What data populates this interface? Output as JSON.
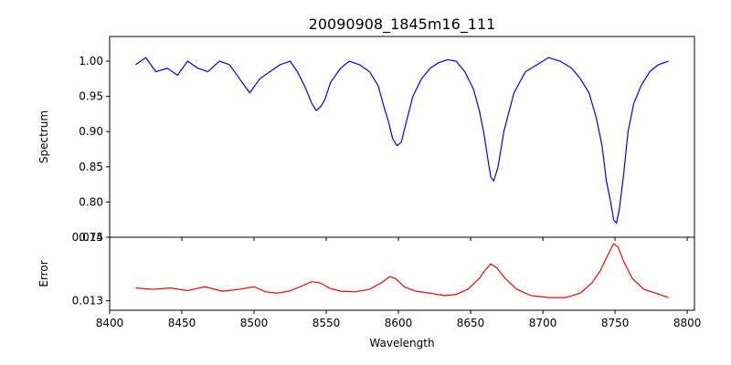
{
  "chart_data": [
    {
      "type": "line",
      "title": "20090908_1845m16_111",
      "xlabel": "",
      "ylabel": "Spectrum",
      "xlim": [
        8400,
        8805
      ],
      "ylim": [
        0.75,
        1.035
      ],
      "xticks": [
        8400,
        8450,
        8500,
        8550,
        8600,
        8650,
        8700,
        8750,
        8800
      ],
      "yticks": [
        0.75,
        0.8,
        0.85,
        0.9,
        0.95,
        1.0
      ],
      "ytick_labels": [
        "0.75",
        "0.80",
        "0.85",
        "0.90",
        "0.95",
        "1.00"
      ],
      "grid": false,
      "series": [
        {
          "color": "#0000ff",
          "x": [
            8418,
            8425,
            8432,
            8440,
            8447,
            8454,
            8461,
            8468,
            8476,
            8483,
            8490,
            8497,
            8504,
            8511,
            8518,
            8525,
            8530,
            8535,
            8540,
            8543,
            8546,
            8549,
            8553,
            8560,
            8566,
            8573,
            8580,
            8586,
            8590,
            8593,
            8596,
            8599,
            8602,
            8605,
            8610,
            8616,
            8622,
            8628,
            8634,
            8640,
            8646,
            8652,
            8656,
            8659,
            8662,
            8664,
            8666,
            8669,
            8673,
            8680,
            8688,
            8696,
            8704,
            8712,
            8720,
            8726,
            8732,
            8737,
            8741,
            8744,
            8747,
            8749,
            8751,
            8753,
            8756,
            8759,
            8763,
            8768,
            8774,
            8780,
            8787
          ],
          "y": [
            0.995,
            1.005,
            0.985,
            0.99,
            0.98,
            1.0,
            0.99,
            0.985,
            1.0,
            0.995,
            0.975,
            0.955,
            0.975,
            0.985,
            0.995,
            1.0,
            0.985,
            0.965,
            0.94,
            0.93,
            0.935,
            0.945,
            0.97,
            0.99,
            1.0,
            0.995,
            0.985,
            0.965,
            0.935,
            0.915,
            0.89,
            0.88,
            0.885,
            0.91,
            0.95,
            0.975,
            0.99,
            0.998,
            1.002,
            1.0,
            0.985,
            0.96,
            0.93,
            0.9,
            0.86,
            0.835,
            0.83,
            0.85,
            0.9,
            0.955,
            0.985,
            0.995,
            1.005,
            1.0,
            0.99,
            0.975,
            0.955,
            0.92,
            0.88,
            0.83,
            0.8,
            0.775,
            0.77,
            0.79,
            0.84,
            0.9,
            0.94,
            0.965,
            0.985,
            0.995,
            1.0
          ]
        }
      ]
    },
    {
      "type": "line",
      "title": "",
      "xlabel": "Wavelength",
      "ylabel": "Error",
      "xlim": [
        8400,
        8805
      ],
      "ylim": [
        0.01285,
        0.014
      ],
      "xticks": [
        8400,
        8450,
        8500,
        8550,
        8600,
        8650,
        8700,
        8750,
        8800
      ],
      "xtick_labels": [
        "8400",
        "8450",
        "8500",
        "8550",
        "8600",
        "8650",
        "8700",
        "8750",
        "8800"
      ],
      "yticks": [
        0.013,
        0.014
      ],
      "ytick_labels": [
        "0.013",
        "0.014"
      ],
      "grid": false,
      "series": [
        {
          "color": "#ff0000",
          "x": [
            8418,
            8430,
            8442,
            8454,
            8466,
            8478,
            8490,
            8500,
            8508,
            8516,
            8524,
            8532,
            8540,
            8546,
            8552,
            8560,
            8570,
            8580,
            8588,
            8594,
            8598,
            8604,
            8612,
            8622,
            8632,
            8640,
            8648,
            8656,
            8660,
            8664,
            8668,
            8674,
            8682,
            8692,
            8704,
            8716,
            8726,
            8734,
            8740,
            8745,
            8749,
            8752,
            8756,
            8762,
            8770,
            8778,
            8787
          ],
          "y": [
            0.0132,
            0.01318,
            0.0132,
            0.01316,
            0.01322,
            0.01315,
            0.01318,
            0.01322,
            0.01314,
            0.01312,
            0.01315,
            0.01322,
            0.0133,
            0.01328,
            0.0132,
            0.01315,
            0.01314,
            0.01318,
            0.01328,
            0.01338,
            0.01335,
            0.01322,
            0.01315,
            0.01312,
            0.01308,
            0.0131,
            0.01318,
            0.01335,
            0.01348,
            0.01358,
            0.01352,
            0.01335,
            0.01318,
            0.01308,
            0.01305,
            0.01305,
            0.01312,
            0.01328,
            0.01348,
            0.01372,
            0.0139,
            0.01385,
            0.01362,
            0.01335,
            0.01318,
            0.01312,
            0.01305
          ]
        }
      ]
    }
  ]
}
